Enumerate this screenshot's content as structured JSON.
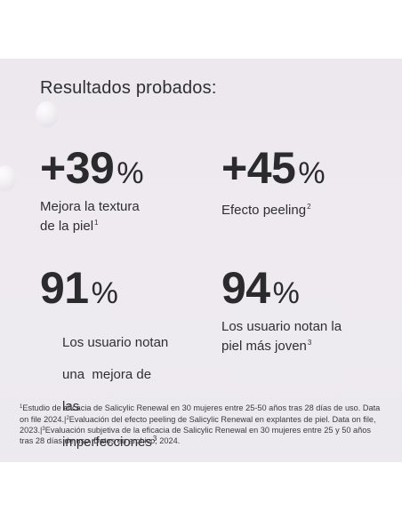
{
  "title": "Resultados probados:",
  "stats": [
    {
      "value": "+39",
      "unit": "%",
      "desc_lines": [
        "Mejora la textura",
        "de la piel"
      ],
      "note": "1"
    },
    {
      "value": "+45",
      "unit": "%",
      "desc_lines": [
        "Efecto peeling"
      ],
      "note": "2"
    },
    {
      "value": "91",
      "unit": "%",
      "desc_lines": [
        "Los usuario notan",
        "una  mejora de",
        "las",
        "imperfecciones"
      ],
      "note": "3"
    },
    {
      "value": "94",
      "unit": "%",
      "desc_lines": [
        "Los usuario notan la",
        "piel más joven"
      ],
      "note": "3"
    }
  ],
  "footnote": {
    "n1": "1",
    "t1": "Estudio de eficacia de Salicylic Renewal en 30 mujeres entre 25-50 años tras 28 días de uso. Data on file 2024.|",
    "n2": "2",
    "t2": "Evaluación del efecto peeling de Salicylic Renewal en explantes de piel. Data on file, 2023.|",
    "n3": "3",
    "t3": "Evaluación subjetiva de la eficacia de Salicylic Renewal en 30 mujeres entre 25 y 50 años tras 28 días de uso. Datos en archivo, 2024."
  }
}
